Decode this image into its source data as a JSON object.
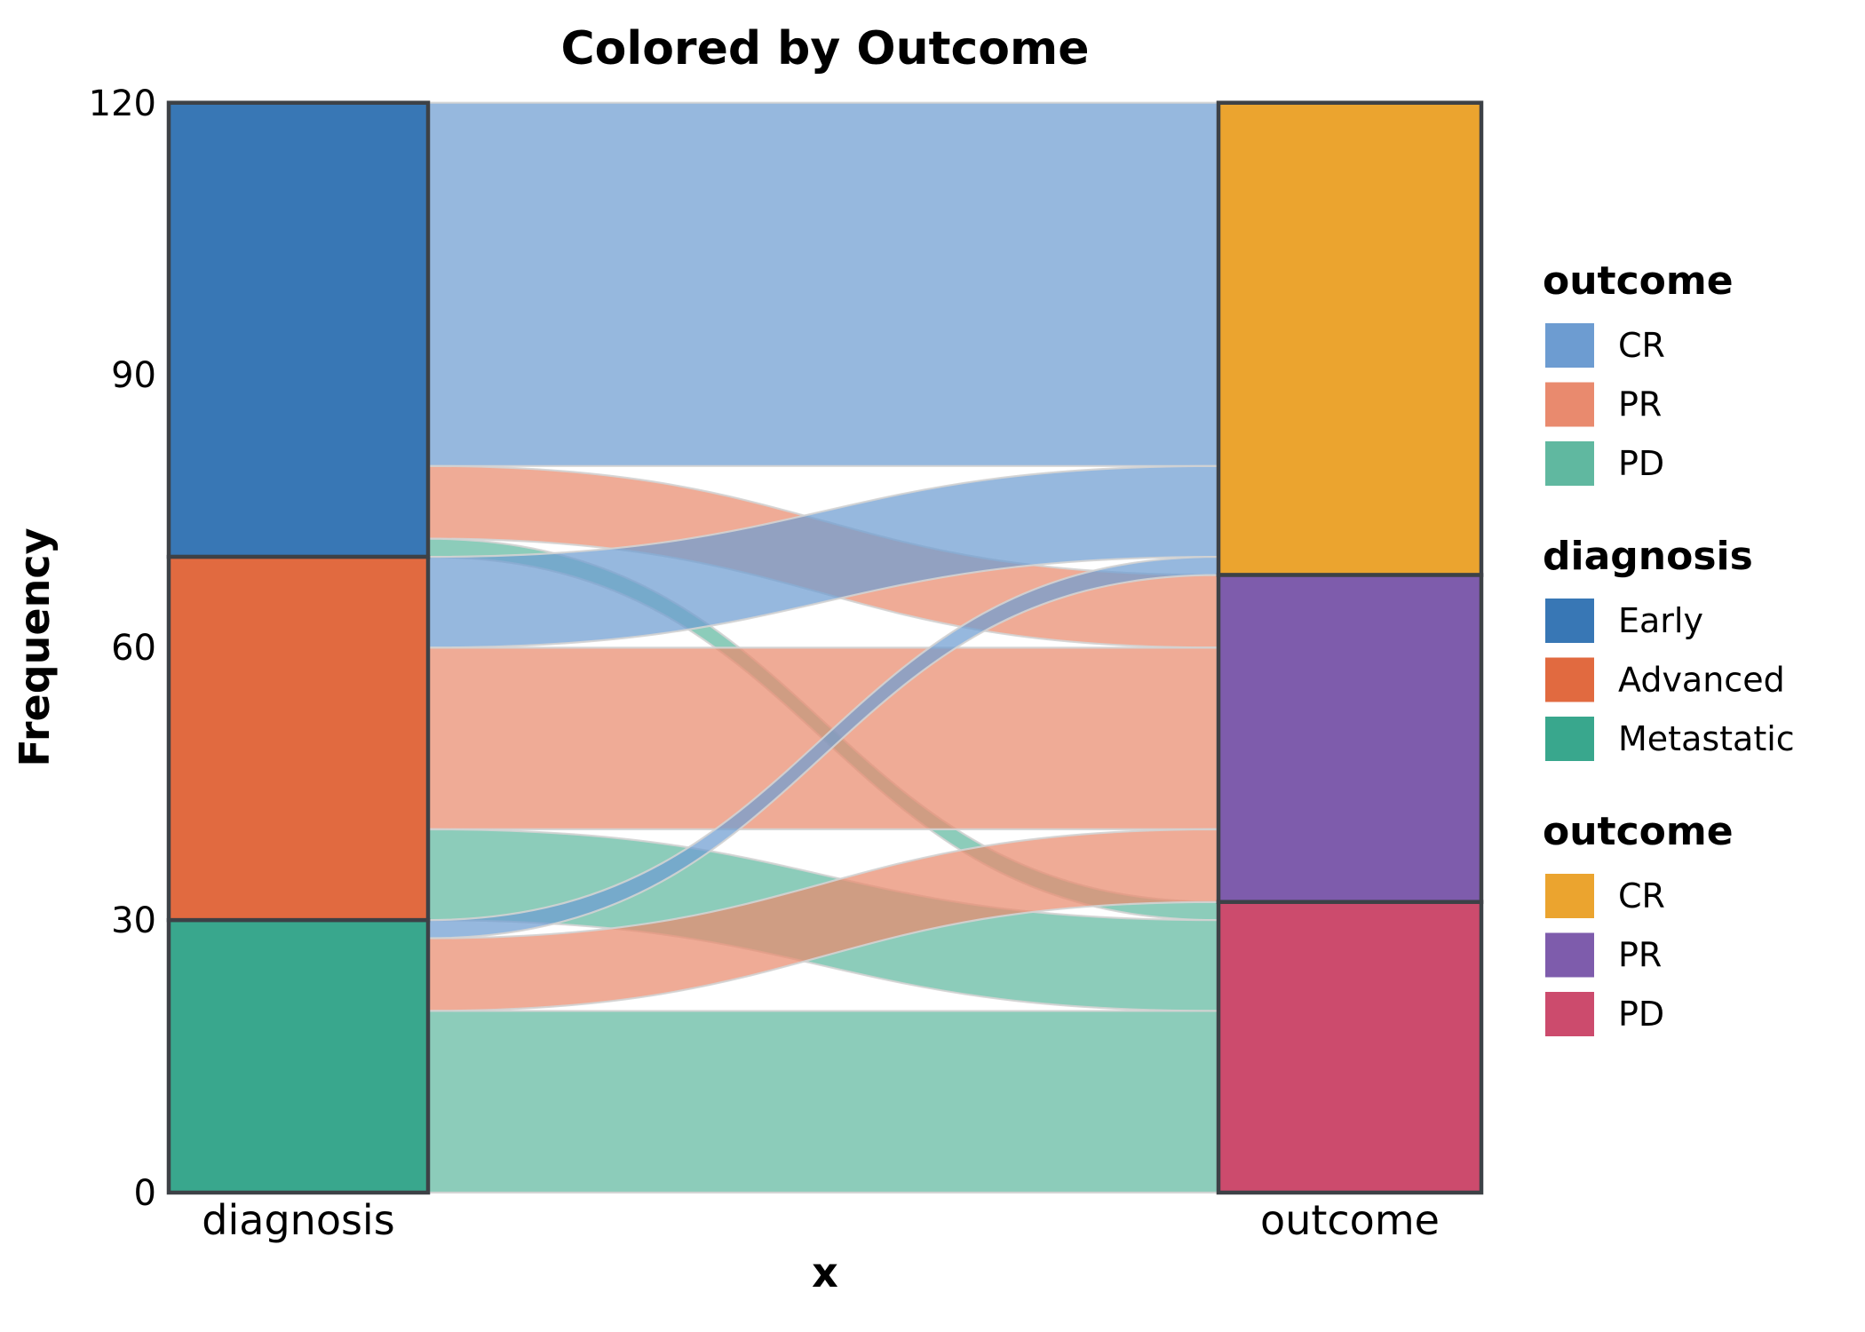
{
  "chart_data": {
    "type": "alluvial",
    "title": "Colored by Outcome",
    "xlabel": "x",
    "ylabel": "Frequency",
    "x_categories": [
      "diagnosis",
      "outcome"
    ],
    "yticks": [
      0,
      30,
      60,
      90,
      120
    ],
    "ylim": [
      0,
      120
    ],
    "grid": "off",
    "strata": {
      "diagnosis": [
        {
          "name": "Early",
          "value": 50,
          "color": "#3877b5"
        },
        {
          "name": "Advanced",
          "value": 40,
          "color": "#e16a40"
        },
        {
          "name": "Metastatic",
          "value": 30,
          "color": "#39a78d"
        }
      ],
      "outcome": [
        {
          "name": "CR",
          "value": 52,
          "color": "#eba42f"
        },
        {
          "name": "PR",
          "value": 36,
          "color": "#7e5cac"
        },
        {
          "name": "PD",
          "value": 32,
          "color": "#cc4b6d"
        }
      ]
    },
    "flows": [
      {
        "diagnosis": "Early",
        "outcome": "CR",
        "value": 40
      },
      {
        "diagnosis": "Early",
        "outcome": "PR",
        "value": 8
      },
      {
        "diagnosis": "Early",
        "outcome": "PD",
        "value": 2
      },
      {
        "diagnosis": "Advanced",
        "outcome": "CR",
        "value": 10
      },
      {
        "diagnosis": "Advanced",
        "outcome": "PR",
        "value": 20
      },
      {
        "diagnosis": "Advanced",
        "outcome": "PD",
        "value": 10
      },
      {
        "diagnosis": "Metastatic",
        "outcome": "CR",
        "value": 2
      },
      {
        "diagnosis": "Metastatic",
        "outcome": "PR",
        "value": 8
      },
      {
        "diagnosis": "Metastatic",
        "outcome": "PD",
        "value": 20
      }
    ],
    "flow_colors": {
      "CR": "#6d9cd1",
      "PR": "#e98a6e",
      "PD": "#60b8a0"
    },
    "flow_opacity": 0.72,
    "stratum_border_color": "#3d4146",
    "flow_border_color": "#d3d3d3"
  },
  "legend": {
    "blocks": [
      {
        "title": "outcome",
        "entries": [
          {
            "label": "CR",
            "color": "#6d9cd1"
          },
          {
            "label": "PR",
            "color": "#e98a6e"
          },
          {
            "label": "PD",
            "color": "#60b8a0"
          }
        ]
      },
      {
        "title": "diagnosis",
        "entries": [
          {
            "label": "Early",
            "color": "#3877b5"
          },
          {
            "label": "Advanced",
            "color": "#e16a40"
          },
          {
            "label": "Metastatic",
            "color": "#39a78d"
          }
        ]
      },
      {
        "title": "outcome",
        "entries": [
          {
            "label": "CR",
            "color": "#eba42f"
          },
          {
            "label": "PR",
            "color": "#7e5cac"
          },
          {
            "label": "PD",
            "color": "#cc4b6d"
          }
        ]
      }
    ]
  }
}
